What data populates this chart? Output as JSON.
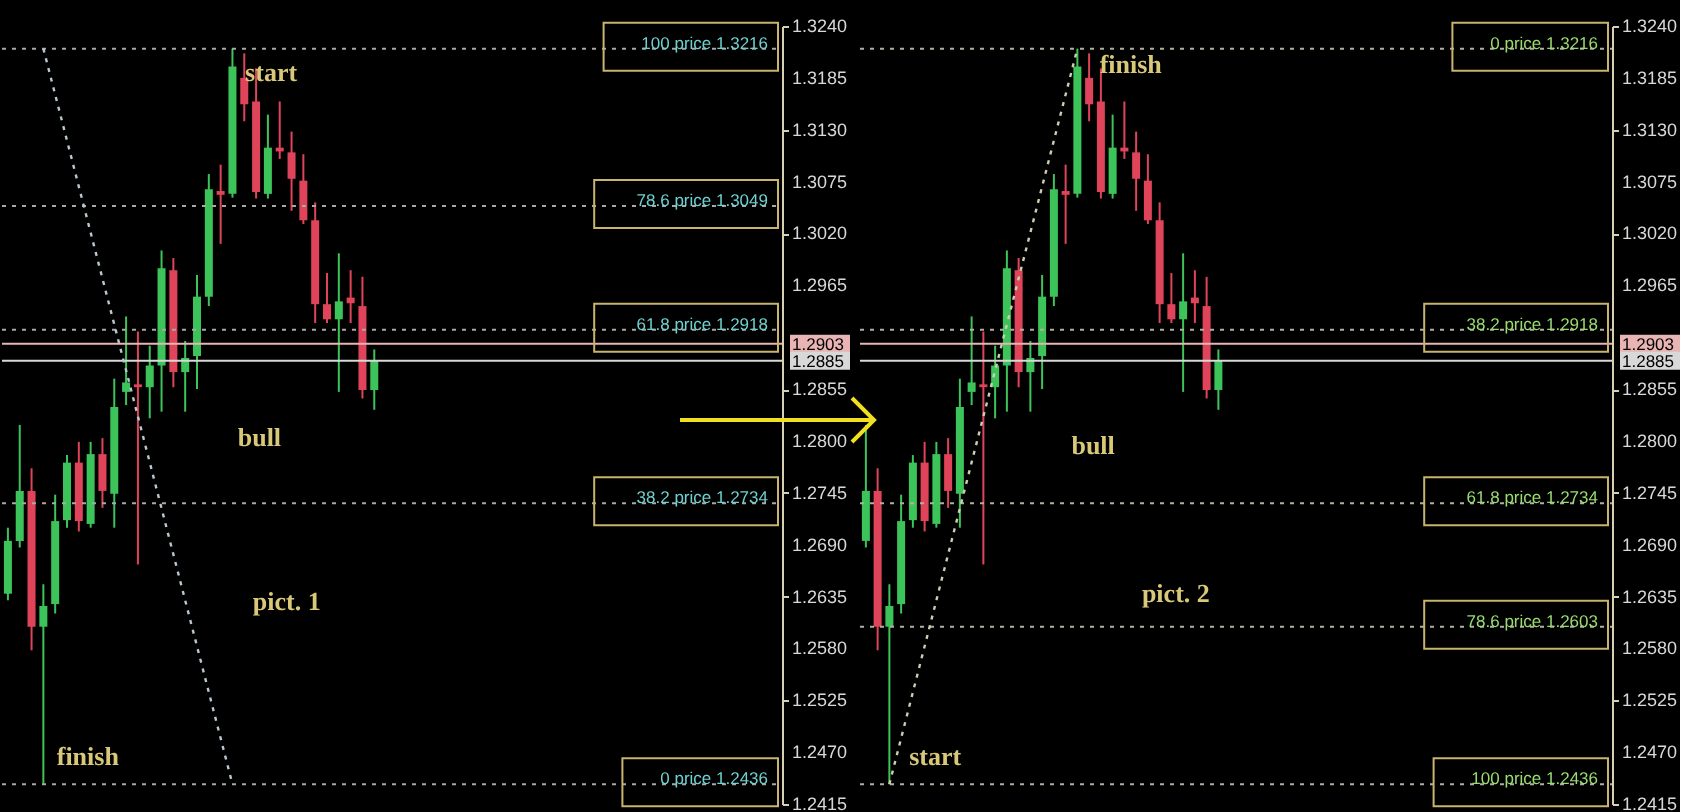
{
  "chart_data": [
    {
      "type": "candlestick",
      "categories": [
        null,
        null,
        null,
        null,
        null,
        null,
        null,
        null,
        null,
        null,
        null,
        null,
        null,
        null,
        null,
        null,
        null,
        null,
        null,
        null,
        null,
        null,
        null,
        null,
        null,
        null,
        null,
        null,
        null,
        null,
        null,
        null,
        null,
        null,
        null,
        null,
        null,
        null,
        null,
        null,
        null,
        null,
        null,
        null,
        null,
        null,
        null,
        null,
        null,
        null,
        null,
        null,
        null,
        null,
        null,
        null,
        null,
        null,
        null,
        null,
        null,
        null,
        null,
        null,
        null,
        null
      ],
      "ohlc": [
        [
          1.2638,
          1.2708,
          1.2631,
          1.2694
        ],
        [
          1.2694,
          1.2817,
          1.2687,
          1.2747
        ],
        [
          1.2747,
          1.2771,
          1.2578,
          1.2603
        ],
        [
          1.2603,
          1.2648,
          1.2436,
          1.2625
        ],
        [
          1.2627,
          1.2743,
          1.2617,
          1.2715
        ],
        [
          1.2716,
          1.2785,
          1.2708,
          1.2777
        ],
        [
          1.2777,
          1.2799,
          1.2704,
          1.2715
        ],
        [
          1.2712,
          1.2799,
          1.2708,
          1.2786
        ],
        [
          1.2786,
          1.2803,
          1.2729,
          1.2747
        ],
        [
          1.2744,
          1.2866,
          1.2708,
          1.2836
        ],
        [
          1.2852,
          1.2932,
          1.2838,
          1.2862
        ],
        [
          1.286,
          1.2916,
          1.2669,
          1.2857
        ],
        [
          1.2857,
          1.2901,
          1.2824,
          1.288
        ],
        [
          1.288,
          1.3002,
          1.2831,
          1.2983
        ],
        [
          1.2981,
          1.2994,
          1.2857,
          1.2873
        ],
        [
          1.2873,
          1.2906,
          1.2831,
          1.2888
        ],
        [
          1.289,
          1.2976,
          1.2855,
          1.2953
        ],
        [
          1.2953,
          1.3083,
          1.2943,
          1.3067
        ],
        [
          1.3065,
          1.3093,
          1.3009,
          1.3061
        ],
        [
          1.3062,
          1.3216,
          1.3058,
          1.3197
        ],
        [
          1.3185,
          1.3211,
          1.3139,
          1.3157
        ],
        [
          1.316,
          1.3195,
          1.3057,
          1.3064
        ],
        [
          1.3062,
          1.3146,
          1.3057,
          1.3111
        ],
        [
          1.3111,
          1.316,
          1.3099,
          1.3107
        ],
        [
          1.3106,
          1.3128,
          1.3044,
          1.3078
        ],
        [
          1.3076,
          1.3104,
          1.303,
          1.3034
        ],
        [
          1.3034,
          1.3053,
          1.2925,
          1.2945
        ],
        [
          1.2945,
          1.2978,
          1.2925,
          1.2929
        ],
        [
          1.2929,
          1.2999,
          1.2852,
          1.2948
        ],
        [
          1.2952,
          1.2981,
          1.2925,
          1.2946
        ],
        [
          1.2943,
          1.2974,
          1.2845,
          1.2854
        ],
        [
          1.2854,
          1.2897,
          1.2833,
          1.2885
        ],
        null,
        null,
        null,
        null,
        null,
        null,
        null,
        null,
        null,
        null,
        null,
        null,
        null,
        null,
        null,
        null,
        null,
        null,
        null,
        null,
        null,
        null,
        null,
        null,
        null,
        null,
        null,
        null,
        null,
        null,
        null,
        null,
        null,
        null
      ],
      "colors": [
        "#3cc45a",
        "#3cc45a",
        "#e0445a",
        "#3cc45a",
        "#3cc45a",
        "#3cc45a",
        "#e0445a",
        "#3cc45a",
        "#e0445a",
        "#3cc45a",
        "#3cc45a",
        "#e0445a",
        "#3cc45a",
        "#3cc45a",
        "#e0445a",
        "#3cc45a",
        "#3cc45a",
        "#3cc45a",
        "#e0445a",
        "#3cc45a",
        "#e0445a",
        "#e0445a",
        "#3cc45a",
        "#e0445a",
        "#e0445a",
        "#e0445a",
        "#e0445a",
        "#e0445a",
        "#3cc45a",
        "#e0445a",
        "#e0445a",
        "#3cc45a",
        null,
        null,
        null,
        null,
        null,
        null,
        null,
        null,
        null,
        null,
        null,
        null,
        null,
        null,
        null,
        null,
        null,
        null,
        null,
        null,
        null,
        null,
        null,
        null,
        null,
        null,
        null,
        null,
        null,
        null,
        null,
        null,
        null,
        null
      ],
      "series": [
        {
          "type": "line",
          "line_style": "dotted",
          "color": "#b8c8d0",
          "values": [
            null,
            null,
            null,
            1.3216,
            null,
            null,
            null,
            null,
            null,
            null,
            null,
            null,
            null,
            null,
            null,
            null,
            null,
            null,
            null,
            1.2436,
            null,
            null,
            null,
            null,
            null,
            null,
            null,
            null,
            null,
            null,
            null,
            null,
            null,
            null,
            null,
            null,
            null,
            null,
            null,
            null,
            null,
            null,
            null,
            null,
            null,
            null,
            null,
            null,
            null,
            null,
            null,
            null,
            null,
            null,
            null,
            null,
            null,
            null,
            null,
            null,
            null,
            null,
            null,
            null,
            null,
            null
          ]
        }
      ],
      "ref_lines": [
        {
          "axis": "y",
          "value": 1.3216,
          "label": "100 price 1.3216",
          "color": "#a8a8a8",
          "line_style": "dotted"
        },
        {
          "axis": "y",
          "value": 1.3049,
          "label": "78.6 price 1.3049",
          "color": "#a8a8a8",
          "line_style": "dotted"
        },
        {
          "axis": "y",
          "value": 1.2918,
          "label": "61.8 price 1.2918",
          "color": "#a8a8a8",
          "line_style": "dotted"
        },
        {
          "axis": "y",
          "value": 1.2734,
          "label": "38.2 price 1.2734",
          "color": "#a8a8a8",
          "line_style": "dotted"
        },
        {
          "axis": "y",
          "value": 1.2436,
          "label": "0 price 1.2436",
          "color": "#a8a8a8",
          "line_style": "dotted"
        },
        {
          "axis": "y",
          "value": 1.2903,
          "label": "1.2903",
          "color": "#e8b4b4",
          "line_style": "solid"
        },
        {
          "axis": "y",
          "value": 1.2885,
          "label": "1.2885",
          "color": "#d8d8d8",
          "line_style": "solid"
        }
      ],
      "annotations": [
        "start",
        "finish",
        "bull",
        "pict. 1"
      ],
      "ylim": [
        1.2415,
        1.324
      ],
      "yticks": [
        {
          "value": 1.2415,
          "label": "1.2415"
        },
        {
          "value": 1.247,
          "label": "1.2470"
        },
        {
          "value": 1.2525,
          "label": "1.2525"
        },
        {
          "value": 1.258,
          "label": "1.2580"
        },
        {
          "value": 1.2635,
          "label": "1.2635"
        },
        {
          "value": 1.269,
          "label": "1.2690"
        },
        {
          "value": 1.2745,
          "label": "1.2745"
        },
        {
          "value": 1.28,
          "label": "1.2800"
        },
        {
          "value": 1.2855,
          "label": "1.2855"
        },
        {
          "value": 1.2965,
          "label": "1.2965"
        },
        {
          "value": 1.302,
          "label": "1.3020"
        },
        {
          "value": 1.3075,
          "label": "1.3075"
        },
        {
          "value": 1.313,
          "label": "1.3130"
        },
        {
          "value": 1.3185,
          "label": "1.3185"
        },
        {
          "value": 1.324,
          "label": "1.3240"
        }
      ],
      "tick_labels": "y"
    },
    {
      "type": "candlestick",
      "categories": [
        null,
        null,
        null,
        null,
        null,
        null,
        null,
        null,
        null,
        null,
        null,
        null,
        null,
        null,
        null,
        null,
        null,
        null,
        null,
        null,
        null,
        null,
        null,
        null,
        null,
        null,
        null,
        null,
        null,
        null,
        null,
        null,
        null,
        null,
        null,
        null,
        null,
        null,
        null,
        null,
        null,
        null,
        null,
        null,
        null,
        null,
        null,
        null,
        null,
        null,
        null,
        null,
        null,
        null,
        null,
        null,
        null,
        null,
        null,
        null,
        null,
        null,
        null,
        null
      ],
      "ohlc": [
        [
          1.2694,
          1.2817,
          1.2687,
          1.2747
        ],
        [
          1.2747,
          1.2771,
          1.2578,
          1.2603
        ],
        [
          1.2603,
          1.2648,
          1.2436,
          1.2625
        ],
        [
          1.2627,
          1.2743,
          1.2617,
          1.2715
        ],
        [
          1.2716,
          1.2785,
          1.2708,
          1.2777
        ],
        [
          1.2777,
          1.2799,
          1.2704,
          1.2715
        ],
        [
          1.2712,
          1.2799,
          1.2708,
          1.2786
        ],
        [
          1.2786,
          1.2803,
          1.2729,
          1.2747
        ],
        [
          1.2744,
          1.2866,
          1.2708,
          1.2836
        ],
        [
          1.2852,
          1.2932,
          1.2838,
          1.2862
        ],
        [
          1.286,
          1.2916,
          1.2669,
          1.2857
        ],
        [
          1.2857,
          1.2901,
          1.2824,
          1.288
        ],
        [
          1.288,
          1.3002,
          1.2831,
          1.2983
        ],
        [
          1.2981,
          1.2994,
          1.2857,
          1.2873
        ],
        [
          1.2873,
          1.2906,
          1.2831,
          1.2888
        ],
        [
          1.289,
          1.2976,
          1.2855,
          1.2953
        ],
        [
          1.2953,
          1.3083,
          1.2943,
          1.3067
        ],
        [
          1.3065,
          1.3093,
          1.3009,
          1.3061
        ],
        [
          1.3062,
          1.3216,
          1.3058,
          1.3197
        ],
        [
          1.3185,
          1.3211,
          1.3139,
          1.3157
        ],
        [
          1.316,
          1.3195,
          1.3057,
          1.3064
        ],
        [
          1.3062,
          1.3146,
          1.3057,
          1.3111
        ],
        [
          1.3111,
          1.316,
          1.3099,
          1.3107
        ],
        [
          1.3106,
          1.3128,
          1.3044,
          1.3078
        ],
        [
          1.3076,
          1.3104,
          1.303,
          1.3034
        ],
        [
          1.3034,
          1.3053,
          1.2925,
          1.2945
        ],
        [
          1.2945,
          1.2978,
          1.2925,
          1.2929
        ],
        [
          1.2929,
          1.2999,
          1.2852,
          1.2948
        ],
        [
          1.2952,
          1.2981,
          1.2925,
          1.2946
        ],
        [
          1.2943,
          1.2974,
          1.2845,
          1.2854
        ],
        [
          1.2854,
          1.2897,
          1.2833,
          1.2885
        ],
        null,
        null,
        null,
        null,
        null,
        null,
        null,
        null,
        null,
        null,
        null,
        null,
        null,
        null,
        null,
        null,
        null,
        null,
        null,
        null,
        null,
        null,
        null,
        null,
        null,
        null,
        null,
        null,
        null,
        null,
        null,
        null,
        null
      ],
      "colors": [
        "#3cc45a",
        "#e0445a",
        "#3cc45a",
        "#3cc45a",
        "#3cc45a",
        "#e0445a",
        "#3cc45a",
        "#e0445a",
        "#3cc45a",
        "#3cc45a",
        "#e0445a",
        "#3cc45a",
        "#3cc45a",
        "#e0445a",
        "#3cc45a",
        "#3cc45a",
        "#3cc45a",
        "#e0445a",
        "#3cc45a",
        "#e0445a",
        "#e0445a",
        "#3cc45a",
        "#e0445a",
        "#e0445a",
        "#e0445a",
        "#e0445a",
        "#e0445a",
        "#3cc45a",
        "#e0445a",
        "#e0445a",
        "#3cc45a",
        null,
        null,
        null,
        null,
        null,
        null,
        null,
        null,
        null,
        null,
        null,
        null,
        null,
        null,
        null,
        null,
        null,
        null,
        null,
        null,
        null,
        null,
        null,
        null,
        null,
        null,
        null,
        null,
        null,
        null,
        null,
        null,
        null
      ],
      "series": [
        {
          "type": "line",
          "line_style": "dotted",
          "color": "#c8d0b0",
          "values": [
            null,
            null,
            1.2436,
            null,
            null,
            null,
            null,
            null,
            null,
            null,
            null,
            null,
            null,
            null,
            null,
            null,
            null,
            null,
            1.3216,
            null,
            null,
            null,
            null,
            null,
            null,
            null,
            null,
            null,
            null,
            null,
            null,
            null,
            null,
            null,
            null,
            null,
            null,
            null,
            null,
            null,
            null,
            null,
            null,
            null,
            null,
            null,
            null,
            null,
            null,
            null,
            null,
            null,
            null,
            null,
            null,
            null,
            null,
            null,
            null,
            null,
            null,
            null,
            null,
            null
          ]
        }
      ],
      "ref_lines": [
        {
          "axis": "y",
          "value": 1.3216,
          "label": "0 price 1.3216",
          "color": "#b0b0a0",
          "line_style": "dotted"
        },
        {
          "axis": "y",
          "value": 1.2918,
          "label": "38.2 price 1.2918",
          "color": "#b0b0a0",
          "line_style": "dotted"
        },
        {
          "axis": "y",
          "value": 1.2734,
          "label": "61.8 price 1.2734",
          "color": "#b0b0a0",
          "line_style": "dotted"
        },
        {
          "axis": "y",
          "value": 1.2603,
          "label": "78.6 price 1.2603",
          "color": "#b0b0a0",
          "line_style": "dotted"
        },
        {
          "axis": "y",
          "value": 1.2436,
          "label": "100 price 1.2436",
          "color": "#b0b0a0",
          "line_style": "dotted"
        },
        {
          "axis": "y",
          "value": 1.2903,
          "label": "1.2903",
          "color": "#e8b4b4",
          "line_style": "solid"
        },
        {
          "axis": "y",
          "value": 1.2885,
          "label": "1.2885",
          "color": "#d8d8d8",
          "line_style": "solid"
        }
      ],
      "annotations": [
        "finish",
        "start",
        "bull",
        "pict. 2"
      ],
      "ylim": [
        1.2415,
        1.324
      ],
      "yticks": [
        {
          "value": 1.2415,
          "label": "1.2415"
        },
        {
          "value": 1.247,
          "label": "1.2470"
        },
        {
          "value": 1.2525,
          "label": "1.2525"
        },
        {
          "value": 1.258,
          "label": "1.2580"
        },
        {
          "value": 1.2635,
          "label": "1.2635"
        },
        {
          "value": 1.269,
          "label": "1.2690"
        },
        {
          "value": 1.2745,
          "label": "1.2745"
        },
        {
          "value": 1.28,
          "label": "1.2800"
        },
        {
          "value": 1.2855,
          "label": "1.2855"
        },
        {
          "value": 1.2965,
          "label": "1.2965"
        },
        {
          "value": 1.302,
          "label": "1.3020"
        },
        {
          "value": 1.3075,
          "label": "1.3075"
        },
        {
          "value": 1.313,
          "label": "1.3130"
        },
        {
          "value": 1.3185,
          "label": "1.3185"
        },
        {
          "value": 1.324,
          "label": "1.3240"
        }
      ],
      "tick_labels": "y"
    }
  ]
}
